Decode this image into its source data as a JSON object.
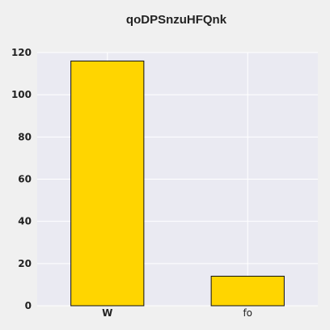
{
  "chart_data": {
    "type": "bar",
    "title": "qoDPSnzuHFQnk",
    "categories": [
      "W",
      "fo"
    ],
    "category_weights": [
      "bold",
      "normal"
    ],
    "values": [
      116,
      14
    ],
    "ylim": [
      0,
      120
    ],
    "yticks": [
      0,
      20,
      40,
      60,
      80,
      100,
      120
    ],
    "xlabel": "",
    "ylabel": "",
    "grid": true,
    "colors": {
      "bar_fill": "#ffd500",
      "bar_stroke": "#111111",
      "plot_background": "#eaeaf2",
      "page_background": "#f0f0f0",
      "grid": "#ffffff"
    }
  }
}
